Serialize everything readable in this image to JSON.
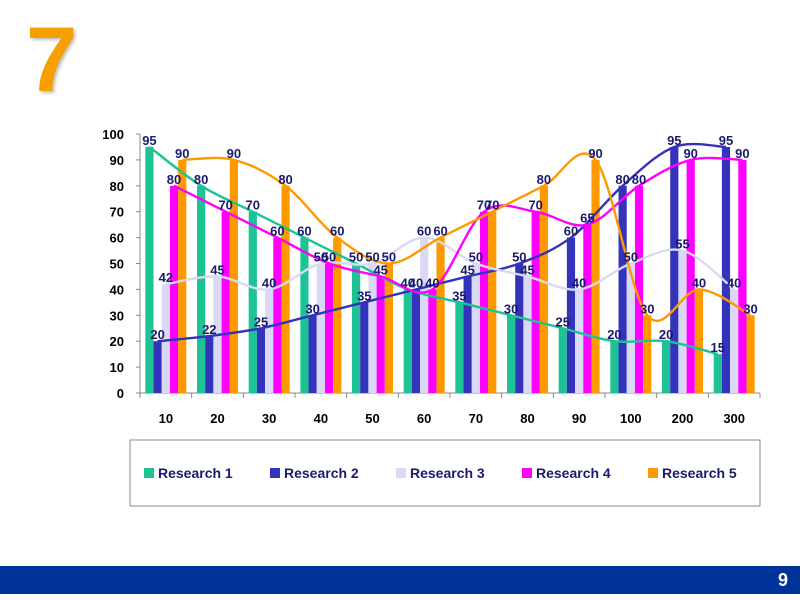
{
  "slide": {
    "heading_number": "7",
    "page_number": "9"
  },
  "colors": {
    "heading": "#F5A000",
    "footer_bar": "#003399",
    "label_text": "#1a1a6e"
  },
  "chart_data": {
    "type": "bar",
    "overlay": "line",
    "title": "",
    "xlabel": "",
    "ylabel": "",
    "ylim": [
      0,
      100
    ],
    "yticks": [
      0,
      10,
      20,
      30,
      40,
      50,
      60,
      70,
      80,
      90,
      100
    ],
    "grid": false,
    "legend_position": "bottom",
    "categories": [
      "10",
      "20",
      "30",
      "40",
      "50",
      "60",
      "70",
      "80",
      "90",
      "100",
      "200",
      "300"
    ],
    "series": [
      {
        "name": "Research 1",
        "color": "#1DC395",
        "values": [
          95,
          80,
          70,
          60,
          50,
          40,
          35,
          30,
          25,
          20,
          20,
          15
        ]
      },
      {
        "name": "Research 2",
        "color": "#3333BB",
        "values": [
          20,
          22,
          25,
          30,
          35,
          40,
          45,
          50,
          60,
          80,
          95,
          95
        ]
      },
      {
        "name": "Research 3",
        "color": "#D9D9F3",
        "values": [
          42,
          45,
          40,
          50,
          50,
          60,
          50,
          45,
          40,
          50,
          55,
          40
        ]
      },
      {
        "name": "Research 4",
        "color": "#FF00FF",
        "values": [
          80,
          70,
          60,
          50,
          45,
          40,
          70,
          70,
          65,
          80,
          90,
          90
        ]
      },
      {
        "name": "Research 5",
        "color": "#FF9900",
        "values": [
          90,
          90,
          80,
          60,
          50,
          60,
          70,
          80,
          90,
          30,
          40,
          30
        ]
      }
    ]
  }
}
